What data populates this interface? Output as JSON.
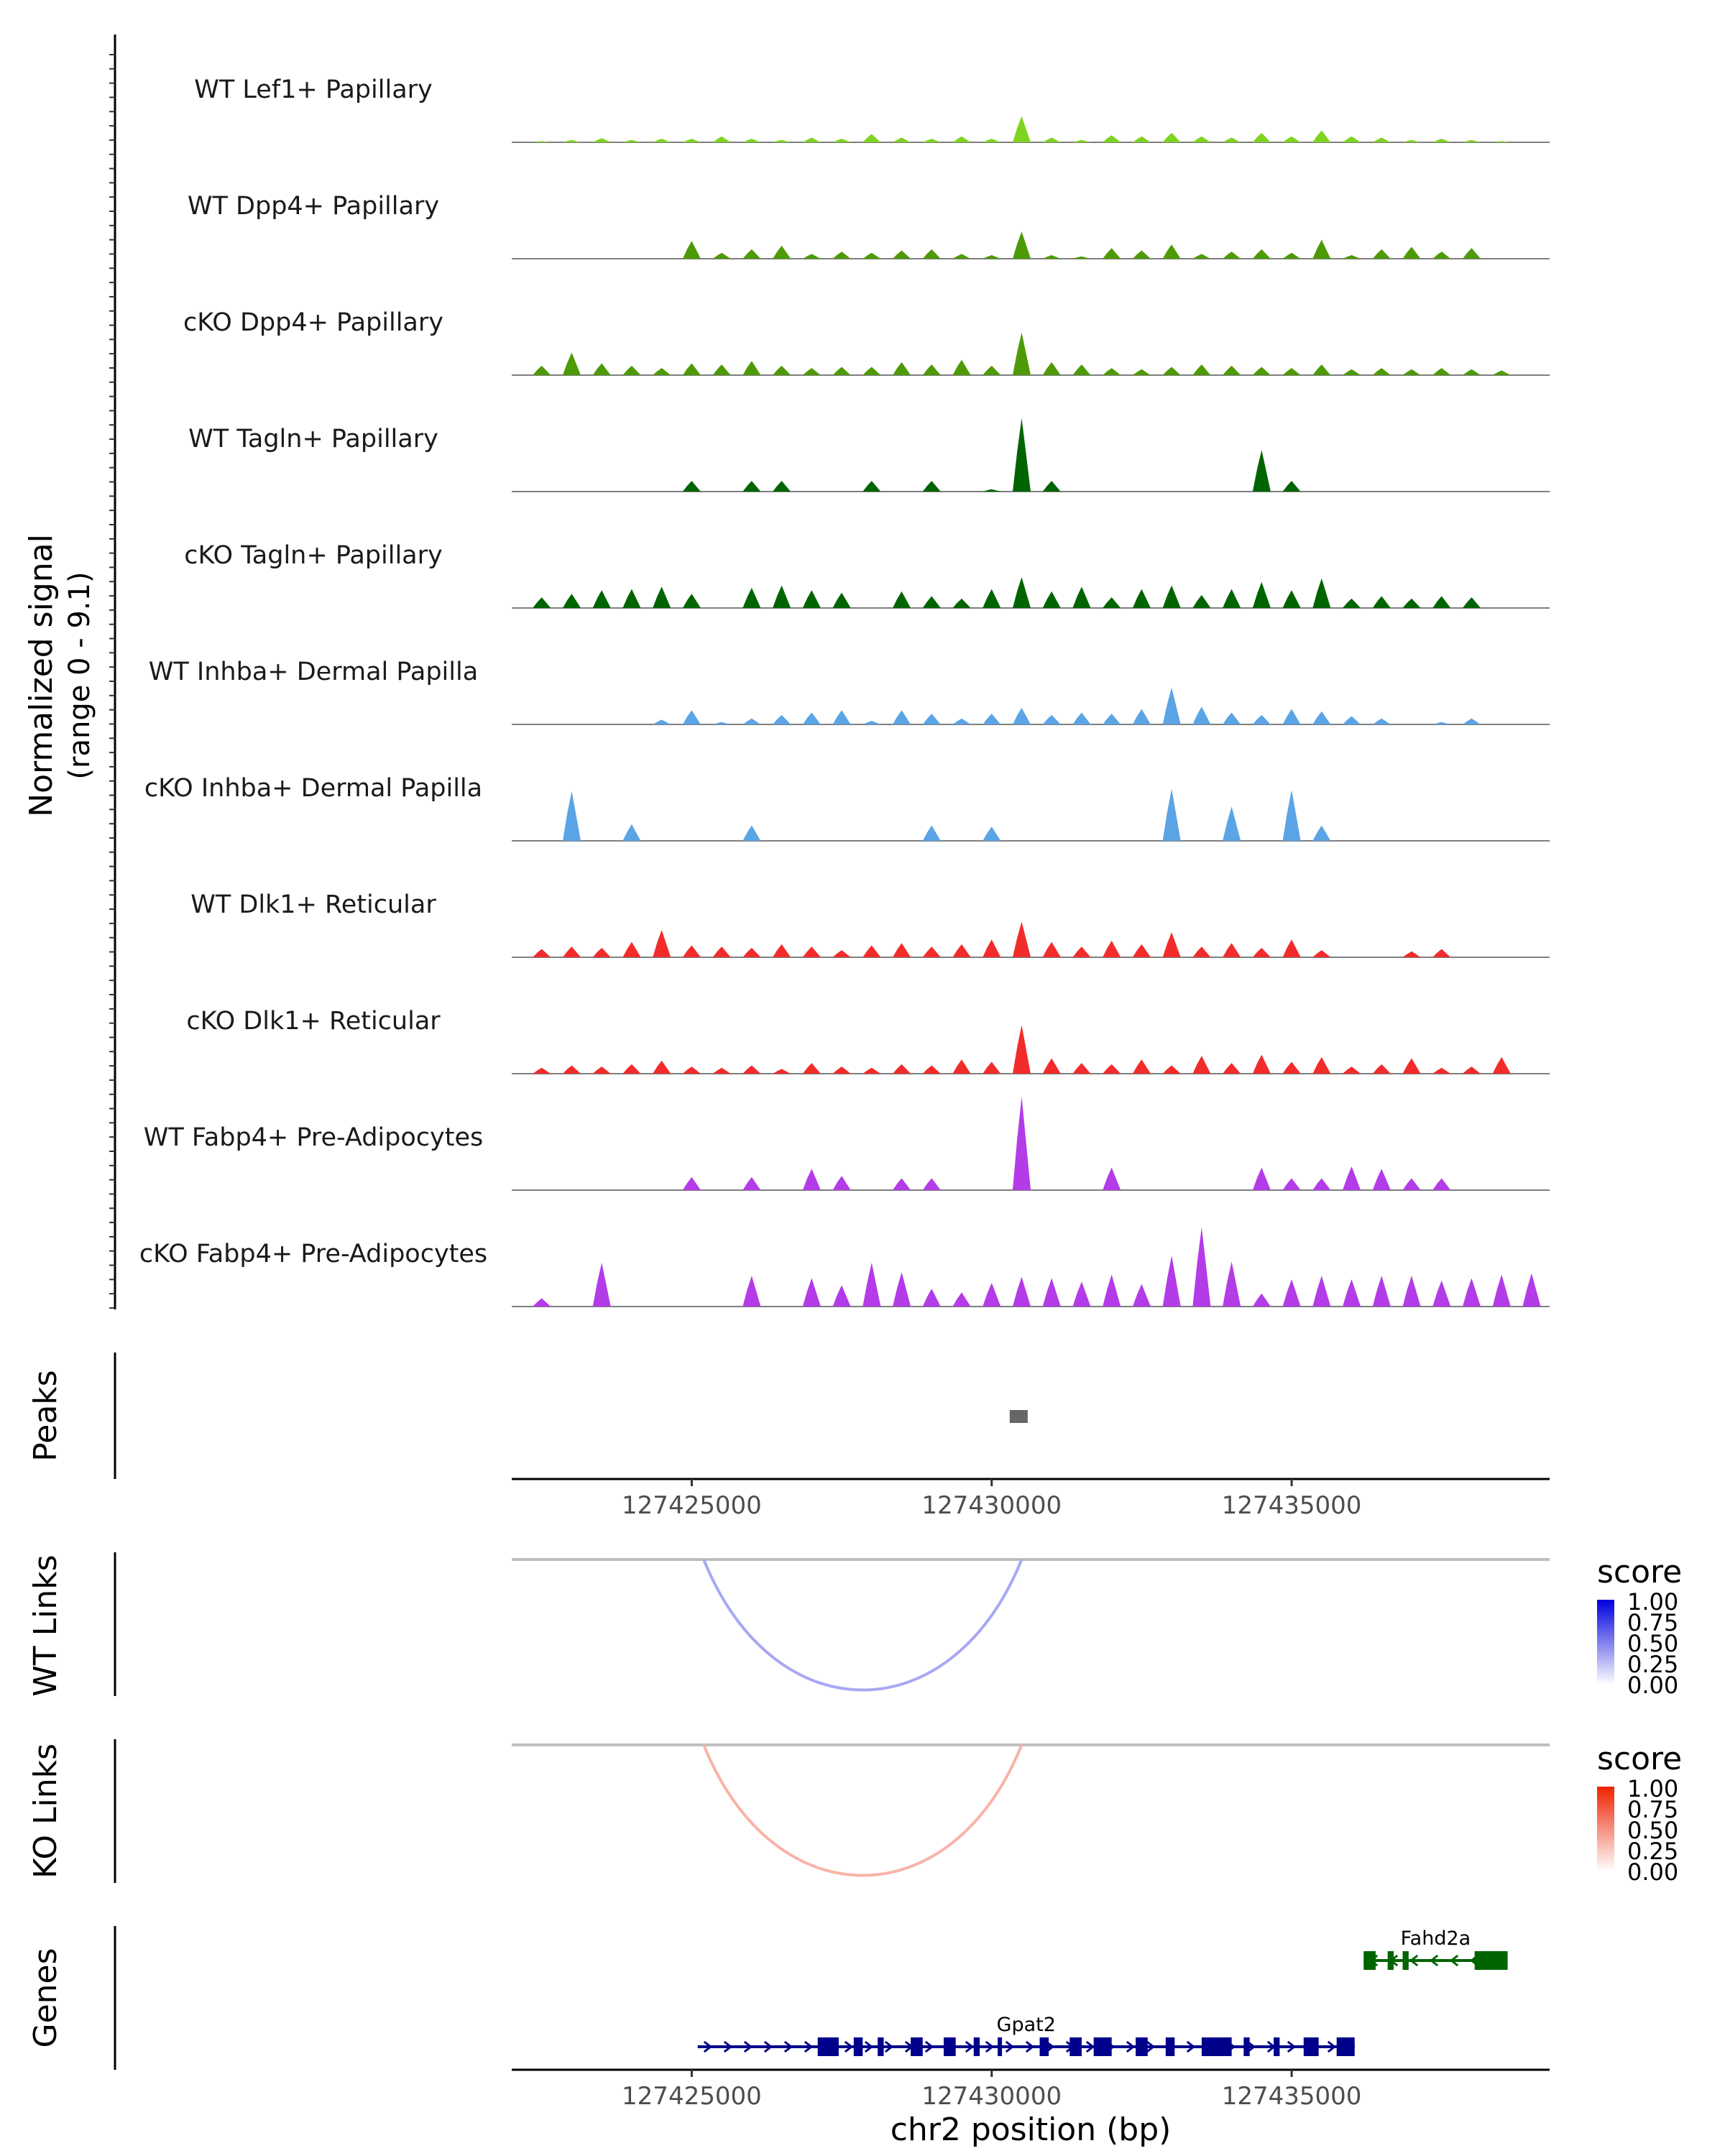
{
  "chart_data": [
    {
      "type": "area",
      "title": "",
      "ylabel": "Normalized signal",
      "ylabel_range": "(range 0 - 9.1)",
      "ylim": [
        0,
        9.1
      ],
      "xlim": [
        127422000,
        127439300
      ],
      "x_grid": [
        127422500,
        127423000,
        127423500,
        127424000,
        127424500,
        127425000,
        127425500,
        127426000,
        127426500,
        127427000,
        127427500,
        127428000,
        127428500,
        127429000,
        127429500,
        127430000,
        127430500,
        127431000,
        127431500,
        127432000,
        127432500,
        127433000,
        127433500,
        127434000,
        127434500,
        127435000,
        127435500,
        127436000,
        127436500,
        127437000,
        127437500,
        127438000,
        127438500,
        127439000
      ],
      "series": [
        {
          "name": "WT Lef1+ Papillary",
          "color": "#7fd321",
          "values": [
            0.1,
            0.2,
            0.35,
            0.2,
            0.3,
            0.3,
            0.5,
            0.3,
            0.2,
            0.4,
            0.3,
            0.7,
            0.4,
            0.3,
            0.5,
            0.3,
            2.2,
            0.4,
            0.2,
            0.6,
            0.5,
            0.8,
            0.5,
            0.4,
            0.8,
            0.5,
            1.0,
            0.5,
            0.4,
            0.2,
            0.3,
            0.2,
            0.1,
            0
          ]
        },
        {
          "name": "WT Dpp4+ Papillary",
          "color": "#4e9a06",
          "values": [
            0,
            0,
            0,
            0,
            0,
            1.5,
            0.5,
            0.8,
            1.1,
            0.4,
            0.6,
            0.5,
            0.7,
            0.8,
            0.4,
            0.3,
            2.3,
            0.3,
            0.2,
            0.9,
            0.7,
            1.2,
            0.4,
            0.6,
            0.8,
            0.5,
            1.6,
            0.3,
            0.8,
            1.0,
            0.6,
            0.9,
            0,
            0
          ]
        },
        {
          "name": "cKO Dpp4+ Papillary",
          "color": "#4e9a06",
          "values": [
            0.8,
            1.9,
            1.0,
            0.8,
            0.6,
            1.0,
            0.9,
            1.2,
            0.8,
            0.6,
            0.7,
            0.7,
            1.1,
            0.9,
            1.3,
            0.8,
            3.6,
            1.1,
            0.9,
            0.6,
            0.5,
            0.7,
            0.9,
            0.8,
            0.7,
            0.6,
            0.9,
            0.5,
            0.6,
            0.5,
            0.6,
            0.5,
            0.4,
            0
          ]
        },
        {
          "name": "WT Tagln+ Papillary",
          "color": "#006400",
          "values": [
            0,
            0,
            0,
            0,
            0,
            0.9,
            0,
            0.9,
            0.9,
            0,
            0,
            0.9,
            0,
            0.9,
            0,
            0.2,
            6.2,
            0.9,
            0,
            0,
            0,
            0,
            0,
            0,
            3.5,
            0.9,
            0,
            0,
            0,
            0,
            0,
            0,
            0,
            0
          ]
        },
        {
          "name": "cKO Tagln+ Papillary",
          "color": "#006400",
          "values": [
            0.9,
            1.2,
            1.5,
            1.6,
            1.8,
            1.2,
            0,
            1.7,
            1.9,
            1.5,
            1.3,
            0,
            1.4,
            1.0,
            0.8,
            1.6,
            2.6,
            1.4,
            1.8,
            0.9,
            1.6,
            1.9,
            1.1,
            1.6,
            2.2,
            1.5,
            2.5,
            0.8,
            1.0,
            0.8,
            1.0,
            0.9,
            0,
            0
          ]
        },
        {
          "name": "WT Inhba+ Dermal Papilla",
          "color": "#5ba4e5",
          "values": [
            0,
            0,
            0,
            0,
            0.4,
            1.2,
            0.2,
            0.5,
            0.8,
            1.0,
            1.2,
            0.3,
            1.2,
            0.9,
            0.5,
            0.9,
            1.4,
            0.8,
            1.0,
            0.9,
            1.3,
            3.1,
            1.5,
            1.0,
            0.8,
            1.3,
            1.1,
            0.7,
            0.5,
            0,
            0.2,
            0.5,
            0,
            0
          ]
        },
        {
          "name": "cKO Inhba+ Dermal Papilla",
          "color": "#5ba4e5",
          "values": [
            0,
            4.2,
            0,
            1.4,
            0,
            0,
            0,
            1.3,
            0,
            0,
            0,
            0,
            0,
            1.3,
            0,
            1.2,
            0,
            0,
            0,
            0,
            0,
            4.4,
            0,
            2.9,
            0,
            4.3,
            1.3,
            0,
            0,
            0,
            0,
            0,
            0,
            0
          ]
        },
        {
          "name": "WT Dlk1+ Reticular",
          "color": "#f22b2b",
          "values": [
            0.7,
            0.9,
            0.8,
            1.3,
            2.3,
            1.0,
            0.9,
            0.8,
            1.1,
            0.9,
            0.6,
            1.0,
            1.2,
            0.9,
            1.1,
            1.5,
            3.0,
            1.3,
            0.9,
            1.4,
            1.1,
            2.1,
            0.9,
            1.2,
            0.8,
            1.5,
            0.6,
            0,
            0,
            0.5,
            0.7,
            0,
            0,
            0
          ]
        },
        {
          "name": "cKO Dlk1+ Reticular",
          "color": "#f22b2b",
          "values": [
            0.5,
            0.7,
            0.6,
            0.8,
            1.1,
            0.6,
            0.5,
            0.7,
            0.4,
            0.9,
            0.6,
            0.5,
            0.8,
            0.7,
            1.2,
            1.0,
            4.1,
            1.3,
            0.9,
            0.8,
            1.2,
            0.7,
            1.5,
            0.9,
            1.6,
            1.0,
            1.4,
            0.6,
            0.8,
            1.3,
            0.5,
            0.6,
            1.4,
            0
          ]
        },
        {
          "name": "WT Fabp4+ Pre-Adipocytes",
          "color": "#b33be8",
          "values": [
            0,
            0,
            0,
            0,
            0,
            1.1,
            0,
            1.1,
            0,
            1.8,
            1.2,
            0,
            1.0,
            1.0,
            0,
            0,
            7.9,
            0,
            0,
            1.9,
            0,
            0,
            0,
            0,
            1.9,
            1.0,
            1.0,
            2.0,
            1.8,
            1.0,
            1.0,
            0,
            0,
            0
          ]
        },
        {
          "name": "cKO Fabp4+ Pre-Adipocytes",
          "color": "#b33be8",
          "values": [
            0.7,
            0,
            3.7,
            0,
            0,
            0,
            0,
            2.6,
            0,
            2.4,
            1.8,
            3.7,
            2.9,
            1.5,
            1.2,
            2.0,
            2.5,
            2.4,
            2.1,
            2.7,
            1.9,
            4.3,
            6.7,
            3.8,
            1.1,
            2.3,
            2.6,
            2.3,
            2.6,
            2.6,
            2.2,
            2.4,
            2.7,
            2.8
          ]
        }
      ]
    },
    {
      "type": "peaks",
      "ylabel": "Peaks",
      "peaks": [
        {
          "start": 127430300,
          "end": 127430600
        }
      ],
      "x_ticks": [
        "127425000",
        "127430000",
        "127435000"
      ],
      "x_tick_values": [
        127425000,
        127430000,
        127435000
      ]
    },
    {
      "type": "links",
      "ylabel": "WT Links",
      "links": [
        {
          "start": 127425200,
          "end": 127430500,
          "score": 0.32
        }
      ],
      "legend": {
        "title": "score",
        "labels": [
          "1.00",
          "0.75",
          "0.50",
          "0.25",
          "0.00"
        ],
        "color_low": "#ffffff",
        "color_high": "#0000dd"
      }
    },
    {
      "type": "links",
      "ylabel": "KO Links",
      "links": [
        {
          "start": 127425200,
          "end": 127430500,
          "score": 0.32
        }
      ],
      "legend": {
        "title": "score",
        "labels": [
          "1.00",
          "0.75",
          "0.50",
          "0.25",
          "0.00"
        ],
        "color_low": "#ffffff",
        "color_high": "#ee2200"
      }
    },
    {
      "type": "genes",
      "ylabel": "Genes",
      "xlabel": "chr2 position (bp)",
      "x_ticks": [
        "127425000",
        "127430000",
        "127435000"
      ],
      "x_tick_values": [
        127425000,
        127430000,
        127435000
      ],
      "genes": [
        {
          "name": "Fahd2a",
          "strand": "-",
          "start": 127436200,
          "end": 127438600,
          "color": "#006400",
          "exons": [
            [
              127436200,
              127436400
            ],
            [
              127436600,
              127436700
            ],
            [
              127436850,
              127436950
            ],
            [
              127438050,
              127438600
            ]
          ]
        },
        {
          "name": "Gpat2",
          "strand": "+",
          "start": 127425100,
          "end": 127436050,
          "color": "#00008b",
          "exons": [
            [
              127427100,
              127427450
            ],
            [
              127427700,
              127427850
            ],
            [
              127428100,
              127428200
            ],
            [
              127428650,
              127428850
            ],
            [
              127429200,
              127429400
            ],
            [
              127429700,
              127429800
            ],
            [
              127430100,
              127430150
            ],
            [
              127430800,
              127430950
            ],
            [
              127431300,
              127431500
            ],
            [
              127431700,
              127432000
            ],
            [
              127432400,
              127432600
            ],
            [
              127432900,
              127433050
            ],
            [
              127433500,
              127434000
            ],
            [
              127434200,
              127434300
            ],
            [
              127434700,
              127434800
            ],
            [
              127435200,
              127435450
            ],
            [
              127435750,
              127436050
            ]
          ]
        }
      ]
    }
  ]
}
